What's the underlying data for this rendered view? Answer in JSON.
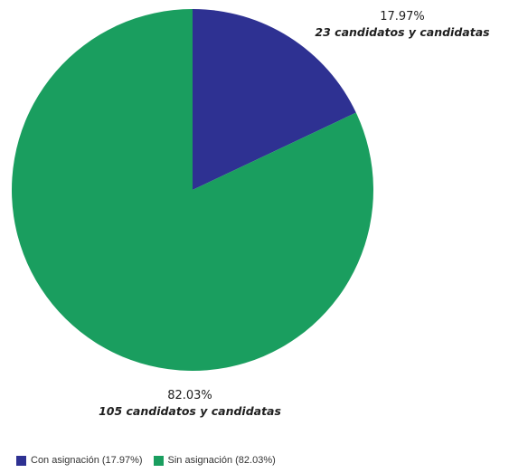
{
  "colors": {
    "con_asignacion": "#2e3192",
    "sin_asignacion": "#1a9e5f"
  },
  "chart_data": {
    "type": "pie",
    "slices": [
      {
        "name": "Con asignación",
        "value": 17.97,
        "count": 23
      },
      {
        "name": "Sin asignación",
        "value": 82.03,
        "count": 105
      }
    ],
    "labels": {
      "con": {
        "percent": "17.97%",
        "count": "23 candidatos y candidatas"
      },
      "sin": {
        "percent": "82.03%",
        "count": "105 candidatos y candidatas"
      }
    },
    "legend": {
      "position": "bottom-left",
      "items": [
        {
          "label": "Con asignación (17.97%)"
        },
        {
          "label": "Sin asignación (82.03%)"
        }
      ]
    }
  }
}
